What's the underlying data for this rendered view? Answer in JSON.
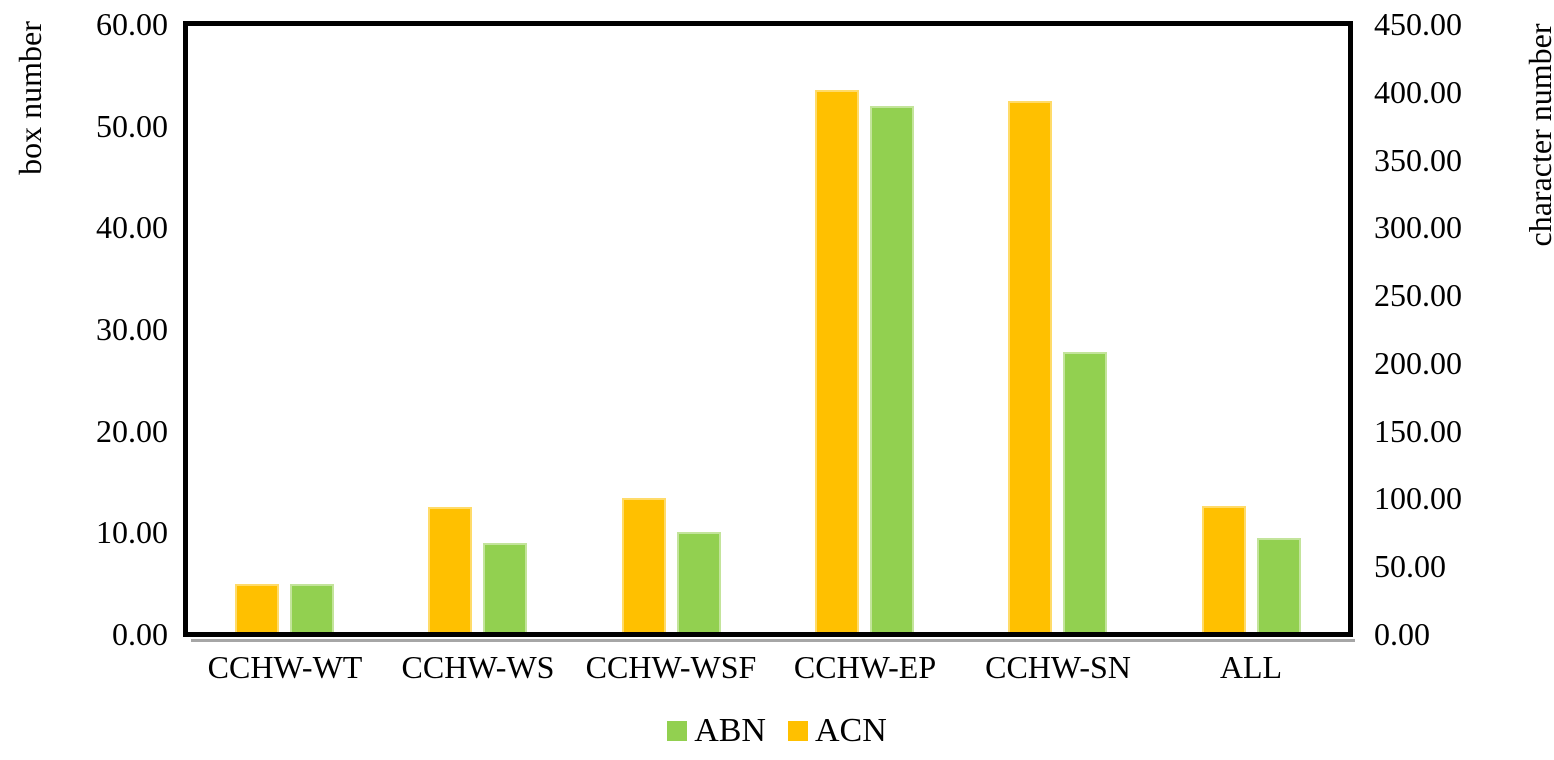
{
  "chart_data": {
    "type": "bar",
    "title": "",
    "categories": [
      "CCHW-WT",
      "CCHW-WS",
      "CCHW-WSF",
      "CCHW-EP",
      "CCHW-SN",
      "ALL"
    ],
    "series": [
      {
        "name": "ABN",
        "axis": "left",
        "color": "#92D050",
        "border_color": "#C3E49B",
        "values": [
          4.7,
          8.8,
          9.9,
          51.9,
          27.6,
          9.3
        ]
      },
      {
        "name": "ACN",
        "axis": "right",
        "color": "#FFC000",
        "border_color": "#FFDB69",
        "values": [
          35.4,
          92.4,
          99.1,
          401.2,
          393.2,
          93.1
        ]
      }
    ],
    "group_order": [
      "ACN",
      "ABN"
    ],
    "axes": {
      "left": {
        "label": "box number",
        "min": 0,
        "max": 60,
        "ticks": [
          "60.00",
          "50.00",
          "40.00",
          "30.00",
          "20.00",
          "10.00",
          "0.00"
        ]
      },
      "right": {
        "label": "character number",
        "min": 0,
        "max": 450,
        "ticks": [
          "450.00",
          "400.00",
          "350.00",
          "300.00",
          "250.00",
          "200.00",
          "150.00",
          "100.00",
          "50.00",
          "0.00"
        ]
      }
    },
    "legend": {
      "position": "bottom",
      "entries": [
        {
          "label": "ABN",
          "color": "#92D050"
        },
        {
          "label": "ACN",
          "color": "#FFC000"
        }
      ]
    },
    "grid": false,
    "plot_border_color": "#000000",
    "axis_shadow_color": "#A6A6A6"
  }
}
